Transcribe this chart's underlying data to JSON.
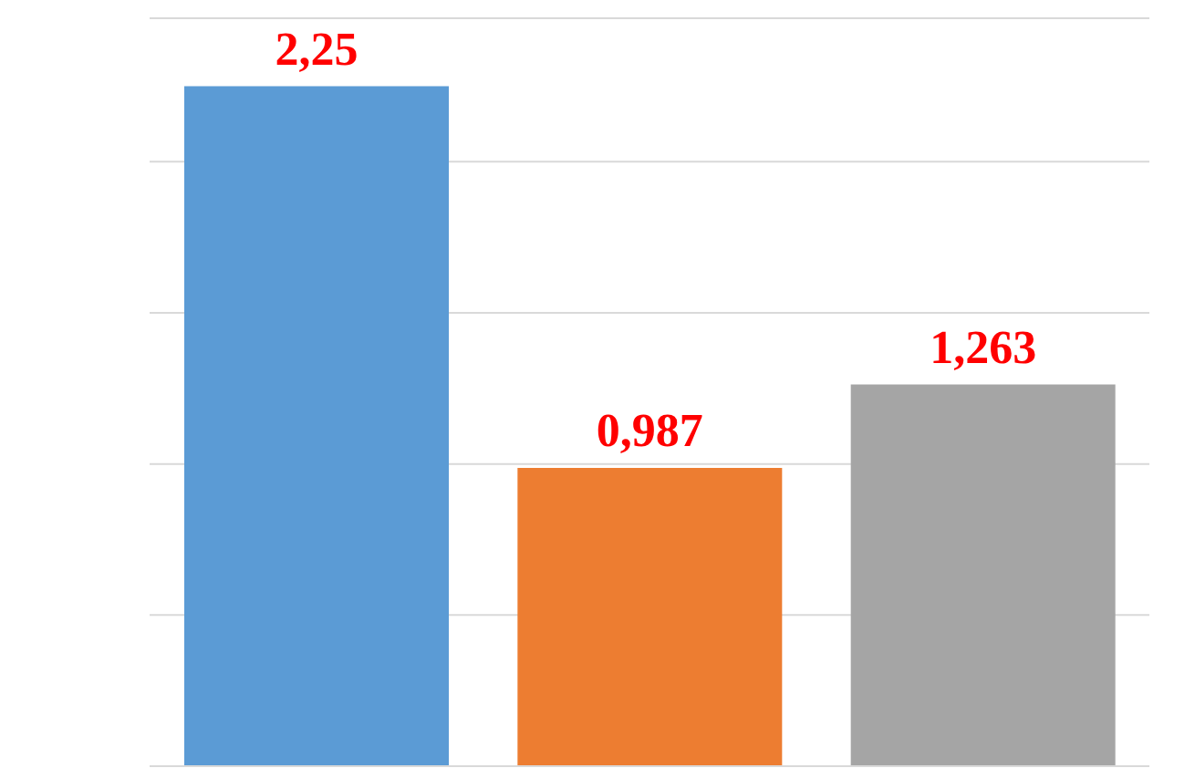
{
  "chart_data": {
    "type": "bar",
    "categories": [
      null,
      null,
      null
    ],
    "values": [
      2.25,
      0.987,
      1.263
    ],
    "colors": [
      "#5b9bd5",
      "#ed7d31",
      "#a5a5a5"
    ],
    "value_labels": [
      "2,25",
      "0,987",
      "1,263"
    ],
    "grid": "y"
  }
}
